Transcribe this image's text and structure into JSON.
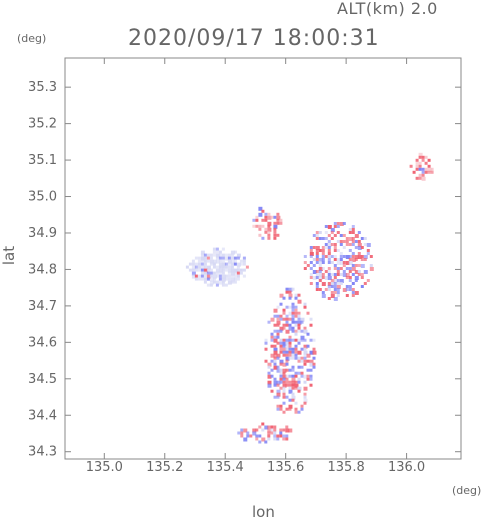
{
  "header": {
    "altitude": "ALT(km)  2.0",
    "timestamp": "2020/09/17 18:00:31"
  },
  "axes": {
    "y_unit": "(deg)",
    "x_unit": "(deg)",
    "x_title": "lon",
    "y_title": "lat"
  },
  "colors": {
    "frame": "#888888",
    "text": "#666666",
    "positive": "#f06070",
    "negative": "#7f83f5",
    "neutral": "#d6d8f4"
  },
  "chart_data": {
    "type": "heatmap",
    "x_ticks": [
      "135.0",
      "135.2",
      "135.4",
      "135.6",
      "135.8",
      "136.0"
    ],
    "y_ticks": [
      "35.3",
      "35.2",
      "35.1",
      "35.0",
      "34.9",
      "34.8",
      "34.7",
      "34.6",
      "34.5",
      "34.4",
      "34.3"
    ],
    "xlim": [
      134.87,
      136.18
    ],
    "ylim": [
      34.28,
      35.38
    ],
    "regions": [
      {
        "name": "western-cluster",
        "lon": [
          135.27,
          135.47
        ],
        "lat": [
          34.76,
          34.86
        ],
        "tone": "neutral"
      },
      {
        "name": "northern-cell",
        "lon": [
          135.49,
          135.58
        ],
        "lat": [
          34.88,
          34.98
        ],
        "tone": "positive"
      },
      {
        "name": "central-band",
        "lon": [
          135.53,
          135.69
        ],
        "lat": [
          34.4,
          34.75
        ],
        "tone": "mixed"
      },
      {
        "name": "eastern-ring",
        "lon": [
          135.66,
          135.88
        ],
        "lat": [
          34.72,
          34.93
        ],
        "tone": "mixed"
      },
      {
        "name": "southern-specks",
        "lon": [
          135.44,
          135.63
        ],
        "lat": [
          34.33,
          34.38
        ],
        "tone": "mixed"
      },
      {
        "name": "far-east-specks",
        "lon": [
          136.01,
          136.08
        ],
        "lat": [
          35.04,
          35.12
        ],
        "tone": "positive"
      }
    ]
  }
}
